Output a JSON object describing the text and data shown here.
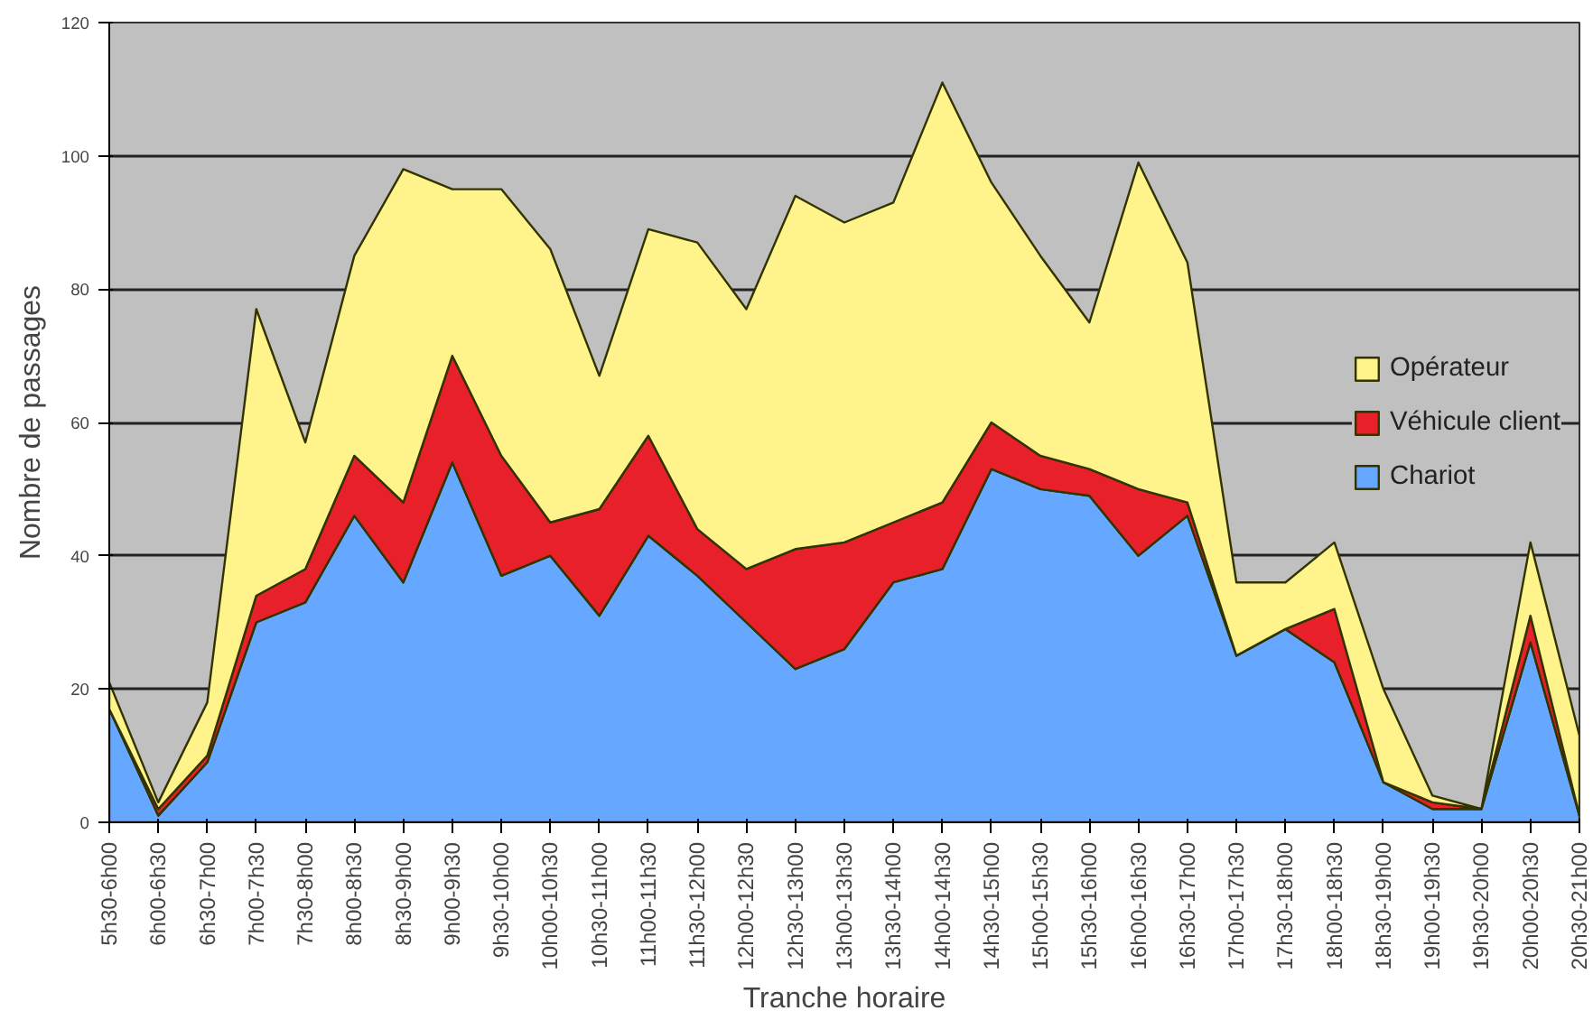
{
  "chart_data": {
    "type": "area",
    "stacked": true,
    "xlabel": "Tranche horaire",
    "ylabel": "Nombre de passages",
    "categories": [
      "5h30-6h00",
      "6h00-6h30",
      "6h30-7h00",
      "7h00-7h30",
      "7h30-8h00",
      "8h00-8h30",
      "8h30-9h00",
      "9h00-9h30",
      "9h30-10h00",
      "10h00-10h30",
      "10h30-11h00",
      "11h00-11h30",
      "11h30-12h00",
      "12h00-12h30",
      "12h30-13h00",
      "13h00-13h30",
      "13h30-14h00",
      "14h00-14h30",
      "14h30-15h00",
      "15h00-15h30",
      "15h30-16h00",
      "16h00-16h30",
      "16h30-17h00",
      "17h00-17h30",
      "17h30-18h00",
      "18h00-18h30",
      "18h30-19h00",
      "19h00-19h30",
      "19h30-20h00",
      "20h00-20h30",
      "20h30-21h00"
    ],
    "series": [
      {
        "name": "Chariot",
        "color": "#66a8ff",
        "values": [
          17,
          1,
          9,
          30,
          33,
          46,
          36,
          54,
          37,
          40,
          31,
          43,
          37,
          30,
          23,
          26,
          36,
          38,
          53,
          50,
          49,
          40,
          46,
          25,
          29,
          24,
          6,
          2,
          2,
          27,
          1
        ]
      },
      {
        "name": "Véhicule client",
        "color": "#e8202a",
        "values": [
          0,
          1,
          1,
          4,
          5,
          9,
          12,
          16,
          18,
          5,
          16,
          15,
          7,
          8,
          18,
          16,
          9,
          10,
          7,
          5,
          4,
          10,
          2,
          0,
          0,
          8,
          0,
          1,
          0,
          4,
          0
        ]
      },
      {
        "name": "Opérateur",
        "color": "#fff48c",
        "values": [
          4,
          1,
          8,
          43,
          19,
          30,
          50,
          25,
          40,
          41,
          20,
          31,
          43,
          39,
          53,
          48,
          48,
          63,
          36,
          30,
          22,
          49,
          36,
          11,
          7,
          10,
          14,
          1,
          0,
          11,
          12
        ]
      }
    ],
    "ylim": [
      0,
      120
    ],
    "yticks": [
      0,
      20,
      40,
      60,
      80,
      100,
      120
    ],
    "grid": "y",
    "legend": "right"
  }
}
